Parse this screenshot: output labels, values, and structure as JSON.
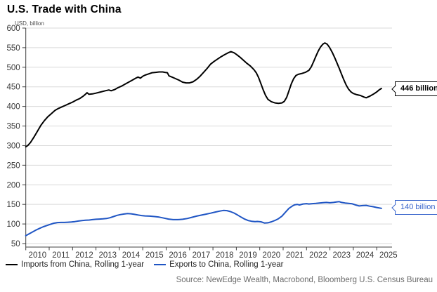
{
  "header": {
    "title": "U.S. Trade with China",
    "unit_label": "USD, billion"
  },
  "source": "Source: NewEdge Wealth, Macrobond, Bloomberg U.S. Census Bureau",
  "chart_data": {
    "type": "line",
    "title": "U.S. Trade with China",
    "ylabel": "USD, billion",
    "xlabel": "",
    "ylim": [
      50,
      600
    ],
    "xlim": [
      2010,
      2025.6
    ],
    "grid": "horizontal",
    "legend_position": "bottom-left",
    "y_ticks": [
      600,
      550,
      500,
      450,
      400,
      350,
      300,
      250,
      200,
      150,
      100,
      50
    ],
    "x_ticks": [
      2010,
      2011,
      2012,
      2013,
      2014,
      2015,
      2016,
      2017,
      2018,
      2019,
      2020,
      2021,
      2022,
      2023,
      2024,
      2025
    ],
    "axis_color": "#404040",
    "gridline_color": "#d9d9d9",
    "series": [
      {
        "name": "Imports from China, Rolling 1-year",
        "color": "#000000",
        "points": [
          [
            2010.0,
            297
          ],
          [
            2010.08,
            300
          ],
          [
            2010.2,
            308
          ],
          [
            2010.35,
            322
          ],
          [
            2010.5,
            337
          ],
          [
            2010.65,
            352
          ],
          [
            2010.8,
            364
          ],
          [
            2010.95,
            374
          ],
          [
            2011.1,
            382
          ],
          [
            2011.25,
            390
          ],
          [
            2011.4,
            395
          ],
          [
            2011.55,
            399
          ],
          [
            2011.7,
            403
          ],
          [
            2011.85,
            407
          ],
          [
            2012.0,
            411
          ],
          [
            2012.15,
            416
          ],
          [
            2012.3,
            420
          ],
          [
            2012.45,
            426
          ],
          [
            2012.55,
            431
          ],
          [
            2012.62,
            435
          ],
          [
            2012.7,
            431
          ],
          [
            2012.85,
            432
          ],
          [
            2013.0,
            434
          ],
          [
            2013.2,
            437
          ],
          [
            2013.4,
            440
          ],
          [
            2013.55,
            442
          ],
          [
            2013.65,
            440
          ],
          [
            2013.8,
            443
          ],
          [
            2013.95,
            448
          ],
          [
            2014.1,
            452
          ],
          [
            2014.25,
            457
          ],
          [
            2014.4,
            462
          ],
          [
            2014.55,
            467
          ],
          [
            2014.7,
            472
          ],
          [
            2014.8,
            475
          ],
          [
            2014.9,
            472
          ],
          [
            2015.0,
            477
          ],
          [
            2015.1,
            480
          ],
          [
            2015.25,
            483
          ],
          [
            2015.4,
            486
          ],
          [
            2015.55,
            487
          ],
          [
            2015.7,
            488
          ],
          [
            2015.85,
            488
          ],
          [
            2015.95,
            487
          ],
          [
            2016.05,
            486
          ],
          [
            2016.12,
            478
          ],
          [
            2016.25,
            475
          ],
          [
            2016.4,
            471
          ],
          [
            2016.55,
            467
          ],
          [
            2016.7,
            462
          ],
          [
            2016.85,
            460
          ],
          [
            2017.0,
            460
          ],
          [
            2017.15,
            463
          ],
          [
            2017.3,
            469
          ],
          [
            2017.45,
            477
          ],
          [
            2017.6,
            487
          ],
          [
            2017.75,
            497
          ],
          [
            2017.9,
            508
          ],
          [
            2018.05,
            515
          ],
          [
            2018.2,
            521
          ],
          [
            2018.35,
            527
          ],
          [
            2018.5,
            532
          ],
          [
            2018.65,
            537
          ],
          [
            2018.77,
            540
          ],
          [
            2018.9,
            537
          ],
          [
            2019.0,
            533
          ],
          [
            2019.15,
            526
          ],
          [
            2019.3,
            518
          ],
          [
            2019.45,
            510
          ],
          [
            2019.6,
            503
          ],
          [
            2019.75,
            494
          ],
          [
            2019.85,
            486
          ],
          [
            2019.95,
            474
          ],
          [
            2020.05,
            458
          ],
          [
            2020.15,
            442
          ],
          [
            2020.25,
            428
          ],
          [
            2020.35,
            418
          ],
          [
            2020.5,
            412
          ],
          [
            2020.65,
            409
          ],
          [
            2020.8,
            408
          ],
          [
            2020.95,
            409
          ],
          [
            2021.05,
            413
          ],
          [
            2021.15,
            423
          ],
          [
            2021.25,
            440
          ],
          [
            2021.35,
            458
          ],
          [
            2021.45,
            471
          ],
          [
            2021.55,
            479
          ],
          [
            2021.65,
            482
          ],
          [
            2021.8,
            484
          ],
          [
            2021.95,
            487
          ],
          [
            2022.1,
            492
          ],
          [
            2022.2,
            501
          ],
          [
            2022.3,
            514
          ],
          [
            2022.4,
            528
          ],
          [
            2022.5,
            541
          ],
          [
            2022.6,
            552
          ],
          [
            2022.7,
            559
          ],
          [
            2022.78,
            562
          ],
          [
            2022.88,
            559
          ],
          [
            2022.98,
            551
          ],
          [
            2023.1,
            538
          ],
          [
            2023.2,
            525
          ],
          [
            2023.3,
            511
          ],
          [
            2023.4,
            497
          ],
          [
            2023.5,
            482
          ],
          [
            2023.6,
            467
          ],
          [
            2023.7,
            454
          ],
          [
            2023.8,
            444
          ],
          [
            2023.9,
            437
          ],
          [
            2024.0,
            433
          ],
          [
            2024.15,
            430
          ],
          [
            2024.3,
            428
          ],
          [
            2024.45,
            424
          ],
          [
            2024.55,
            422
          ],
          [
            2024.7,
            426
          ],
          [
            2024.85,
            431
          ],
          [
            2025.0,
            437
          ],
          [
            2025.1,
            442
          ],
          [
            2025.2,
            446
          ]
        ]
      },
      {
        "name": "Exports to China, Rolling 1-year",
        "color": "#1f55c4",
        "points": [
          [
            2010.0,
            70
          ],
          [
            2010.15,
            75
          ],
          [
            2010.3,
            80
          ],
          [
            2010.45,
            85
          ],
          [
            2010.6,
            89
          ],
          [
            2010.75,
            93
          ],
          [
            2010.9,
            96
          ],
          [
            2011.05,
            99
          ],
          [
            2011.2,
            102
          ],
          [
            2011.35,
            103.5
          ],
          [
            2011.5,
            104
          ],
          [
            2011.65,
            104
          ],
          [
            2011.8,
            104.5
          ],
          [
            2011.95,
            105
          ],
          [
            2012.1,
            106
          ],
          [
            2012.25,
            107.5
          ],
          [
            2012.4,
            108.5
          ],
          [
            2012.55,
            109.5
          ],
          [
            2012.7,
            110
          ],
          [
            2012.85,
            111
          ],
          [
            2013.0,
            112
          ],
          [
            2013.15,
            112.5
          ],
          [
            2013.3,
            113
          ],
          [
            2013.45,
            114
          ],
          [
            2013.6,
            116
          ],
          [
            2013.75,
            119
          ],
          [
            2013.9,
            122
          ],
          [
            2014.05,
            124
          ],
          [
            2014.2,
            125.5
          ],
          [
            2014.35,
            126.5
          ],
          [
            2014.5,
            126
          ],
          [
            2014.65,
            124.5
          ],
          [
            2014.8,
            123
          ],
          [
            2014.95,
            121.5
          ],
          [
            2015.1,
            120.5
          ],
          [
            2015.3,
            120
          ],
          [
            2015.5,
            119
          ],
          [
            2015.7,
            117.5
          ],
          [
            2015.9,
            115
          ],
          [
            2016.1,
            112.5
          ],
          [
            2016.3,
            111
          ],
          [
            2016.5,
            111
          ],
          [
            2016.7,
            112
          ],
          [
            2016.9,
            114
          ],
          [
            2017.1,
            117
          ],
          [
            2017.3,
            120
          ],
          [
            2017.5,
            122.5
          ],
          [
            2017.7,
            125
          ],
          [
            2017.9,
            127.5
          ],
          [
            2018.1,
            130.5
          ],
          [
            2018.3,
            133
          ],
          [
            2018.45,
            134.5
          ],
          [
            2018.6,
            134
          ],
          [
            2018.75,
            131.5
          ],
          [
            2018.9,
            128
          ],
          [
            2019.05,
            123
          ],
          [
            2019.2,
            117.5
          ],
          [
            2019.35,
            112.5
          ],
          [
            2019.5,
            109
          ],
          [
            2019.65,
            107
          ],
          [
            2019.8,
            106
          ],
          [
            2019.9,
            106.5
          ],
          [
            2020.05,
            105.5
          ],
          [
            2020.2,
            102.5
          ],
          [
            2020.35,
            103
          ],
          [
            2020.5,
            105.5
          ],
          [
            2020.65,
            109
          ],
          [
            2020.8,
            113.5
          ],
          [
            2020.95,
            120
          ],
          [
            2021.1,
            130
          ],
          [
            2021.25,
            140
          ],
          [
            2021.4,
            146
          ],
          [
            2021.5,
            149
          ],
          [
            2021.6,
            150
          ],
          [
            2021.7,
            148.5
          ],
          [
            2021.85,
            151
          ],
          [
            2022.0,
            152
          ],
          [
            2022.1,
            151
          ],
          [
            2022.25,
            152
          ],
          [
            2022.4,
            152.5
          ],
          [
            2022.55,
            153.5
          ],
          [
            2022.7,
            154.5
          ],
          [
            2022.85,
            155
          ],
          [
            2023.0,
            154
          ],
          [
            2023.15,
            155
          ],
          [
            2023.3,
            156.5
          ],
          [
            2023.4,
            157
          ],
          [
            2023.5,
            155
          ],
          [
            2023.65,
            153.5
          ],
          [
            2023.8,
            152.5
          ],
          [
            2023.95,
            151.5
          ],
          [
            2024.1,
            148.5
          ],
          [
            2024.25,
            146
          ],
          [
            2024.4,
            147
          ],
          [
            2024.55,
            147.5
          ],
          [
            2024.7,
            145.5
          ],
          [
            2024.85,
            144
          ],
          [
            2025.0,
            142
          ],
          [
            2025.2,
            140
          ]
        ]
      }
    ],
    "end_labels": [
      {
        "text": "446 billion",
        "value": 446,
        "color": "#000000"
      },
      {
        "text": "140 billion",
        "value": 140,
        "color": "#3a66cc"
      }
    ]
  }
}
